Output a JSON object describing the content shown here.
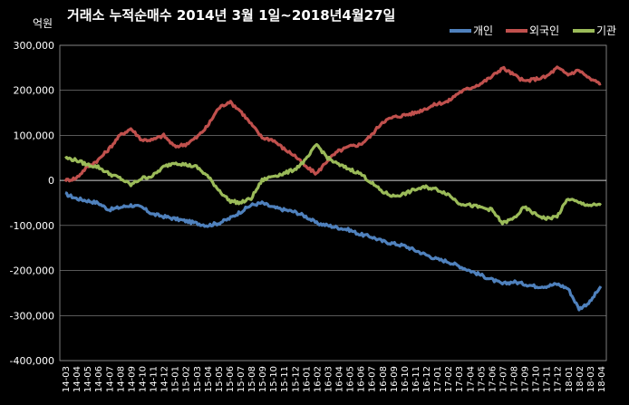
{
  "chart_data": {
    "type": "line",
    "title": "거래소 누적순매수 2014년 3월 1일~2018년4월27일",
    "unit_label": "억원",
    "ylim": [
      -400000,
      300000
    ],
    "y_ticks": [
      "300,000",
      "200,000",
      "100,000",
      "0",
      "-100,000",
      "-200,000",
      "-300,000",
      "-400,000"
    ],
    "y_tick_values": [
      300000,
      200000,
      100000,
      0,
      -100000,
      -200000,
      -300000,
      -400000
    ],
    "x_ticks": [
      "14-03",
      "14-04",
      "14-05",
      "14-06",
      "14-07",
      "14-08",
      "14-09",
      "14-10",
      "14-11",
      "14-12",
      "15-01",
      "15-02",
      "15-03",
      "15-04",
      "15-05",
      "15-06",
      "15-07",
      "15-08",
      "15-09",
      "15-10",
      "15-11",
      "15-12",
      "16-01",
      "16-02",
      "16-03",
      "16-04",
      "16-05",
      "16-06",
      "16-07",
      "16-08",
      "16-09",
      "16-10",
      "16-11",
      "16-12",
      "17-01",
      "17-02",
      "17-03",
      "17-04",
      "17-05",
      "17-06",
      "17-07",
      "17-08",
      "17-09",
      "17-10",
      "17-11",
      "17-12",
      "18-01",
      "18-02",
      "18-03",
      "18-04"
    ],
    "grid": true,
    "legend_position": "top-right",
    "series": [
      {
        "name": "개인",
        "color": "#4F81BD",
        "values": [
          -30000,
          -40000,
          -45000,
          -50000,
          -65000,
          -60000,
          -55000,
          -60000,
          -75000,
          -80000,
          -85000,
          -90000,
          -95000,
          -100000,
          -95000,
          -85000,
          -70000,
          -55000,
          -50000,
          -60000,
          -65000,
          -70000,
          -80000,
          -95000,
          -100000,
          -105000,
          -110000,
          -120000,
          -125000,
          -135000,
          -140000,
          -145000,
          -155000,
          -165000,
          -175000,
          -180000,
          -190000,
          -200000,
          -210000,
          -220000,
          -230000,
          -225000,
          -230000,
          -235000,
          -235000,
          -230000,
          -240000,
          -285000,
          -270000,
          -235000
        ]
      },
      {
        "name": "외국인",
        "color": "#C0504D",
        "values": [
          0,
          5000,
          30000,
          45000,
          70000,
          100000,
          115000,
          90000,
          90000,
          100000,
          75000,
          80000,
          95000,
          120000,
          160000,
          175000,
          155000,
          125000,
          95000,
          90000,
          70000,
          55000,
          30000,
          15000,
          45000,
          65000,
          75000,
          80000,
          100000,
          130000,
          140000,
          145000,
          150000,
          160000,
          170000,
          175000,
          195000,
          205000,
          215000,
          230000,
          250000,
          235000,
          220000,
          225000,
          230000,
          250000,
          235000,
          245000,
          225000,
          215000
        ]
      },
      {
        "name": "기관",
        "color": "#9BBB59",
        "values": [
          50000,
          45000,
          35000,
          30000,
          15000,
          5000,
          -10000,
          5000,
          10000,
          30000,
          40000,
          35000,
          30000,
          10000,
          -20000,
          -45000,
          -50000,
          -40000,
          0,
          10000,
          15000,
          25000,
          45000,
          80000,
          50000,
          35000,
          25000,
          15000,
          -5000,
          -25000,
          -35000,
          -30000,
          -20000,
          -15000,
          -20000,
          -30000,
          -50000,
          -55000,
          -60000,
          -65000,
          -95000,
          -85000,
          -60000,
          -75000,
          -85000,
          -80000,
          -40000,
          -50000,
          -55000,
          -55000
        ]
      }
    ]
  }
}
